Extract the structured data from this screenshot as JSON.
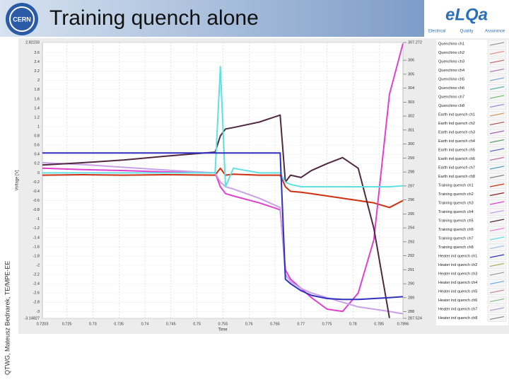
{
  "slide": {
    "author_note": "QTWG, Mateusz Bednarek, TE/MPE-EE",
    "cern_logo": "CERN",
    "elqa_logo": "eLQa",
    "elqa_words": [
      "Electrical",
      "Quality",
      "Assurance"
    ]
  },
  "chart_data": {
    "type": "line",
    "title": "Training quench alone",
    "xlabel": "Time",
    "ylabel": "Voltage [V]",
    "x": [
      0.7203,
      0.728,
      0.736,
      0.744,
      0.7535,
      0.7545,
      0.7555,
      0.757,
      0.762,
      0.766,
      0.767,
      0.768,
      0.77,
      0.772,
      0.775,
      0.778,
      0.781,
      0.784,
      0.787,
      0.7896
    ],
    "xlim": [
      0.7203,
      0.7896
    ],
    "xticks": [
      0.7203,
      0.725,
      0.73,
      0.735,
      0.74,
      0.745,
      0.75,
      0.755,
      0.76,
      0.765,
      0.77,
      0.775,
      0.78,
      0.785,
      0.7896
    ],
    "ylim": [
      -3.14827,
      2.82233
    ],
    "yticks": [
      2.82233,
      2.6,
      2.4,
      2.2,
      2,
      1.8,
      1.6,
      1.4,
      1.2,
      1,
      0.8,
      0.6,
      0.4,
      0.2,
      0,
      -0.2,
      -0.4,
      -0.6,
      -0.8,
      -1,
      -1.2,
      -1.4,
      -1.6,
      -1.8,
      -2,
      -2.2,
      -2.4,
      -2.6,
      -2.8,
      -3,
      -3.14827
    ],
    "y2lim": [
      287.524,
      307.272
    ],
    "y2ticks": [
      307.272,
      306,
      305,
      304,
      303,
      302,
      301,
      300,
      299,
      298,
      297,
      296,
      295,
      294,
      293,
      292,
      291,
      290,
      289,
      288,
      287.524
    ],
    "grid": true,
    "series": [
      {
        "name": "Quenchino ch1",
        "color": "#9a9a9a"
      },
      {
        "name": "Quenchino ch2",
        "color": "#e89090"
      },
      {
        "name": "Quenchino ch3",
        "color": "#c87070"
      },
      {
        "name": "Quenchino ch4",
        "color": "#b080b0"
      },
      {
        "name": "Quenchino ch5",
        "color": "#80a8d8"
      },
      {
        "name": "Quenchino ch6",
        "color": "#60b0b0"
      },
      {
        "name": "Quenchino ch7",
        "color": "#70c070"
      },
      {
        "name": "Quenchino ch8",
        "color": "#9090e0"
      },
      {
        "name": "Earth ind quench ch1",
        "color": "#d0a060"
      },
      {
        "name": "Earth ind quench ch2",
        "color": "#b06060"
      },
      {
        "name": "Earth ind quench ch3",
        "color": "#a060c0"
      },
      {
        "name": "Earth ind quench ch4",
        "color": "#60a060"
      },
      {
        "name": "Earth ind quench ch5",
        "color": "#6070c0"
      },
      {
        "name": "Earth ind quench ch6",
        "color": "#c070a0"
      },
      {
        "name": "Earth ind quench ch7",
        "color": "#50a0c0"
      },
      {
        "name": "Earth ind quench ch8",
        "color": "#808080"
      },
      {
        "name": "Training quench ch1",
        "color": "#d03010",
        "values": [
          -0.05,
          -0.04,
          -0.05,
          -0.04,
          -0.05,
          0.1,
          -0.05,
          -0.03,
          -0.05,
          -0.05,
          -0.3,
          -0.4,
          -0.42,
          -0.45,
          -0.5,
          -0.55,
          -0.6,
          -0.65,
          -0.75,
          -0.6
        ]
      },
      {
        "name": "Training quench ch2",
        "color": "#902020"
      },
      {
        "name": "Training quench ch3",
        "color": "#e040d0",
        "values": [
          0.1,
          0.07,
          0.05,
          0.02,
          0,
          -0.3,
          -0.45,
          -0.5,
          -0.65,
          -0.8,
          -2.1,
          -2.3,
          -2.5,
          -2.7,
          -2.95,
          -3.0,
          -2.6,
          -1.45,
          1.7,
          2.8
        ]
      },
      {
        "name": "Training quench ch4",
        "color": "#c8a0e8",
        "values": [
          0.22,
          0.18,
          0.12,
          0.06,
          0,
          -0.2,
          -0.3,
          -0.35,
          -0.55,
          -0.75,
          -2.2,
          -2.35,
          -2.5,
          -2.6,
          -2.7,
          -2.8,
          -2.9,
          -2.95,
          -3.0,
          -3.05
        ]
      },
      {
        "name": "Training quench ch5",
        "color": "#502840",
        "values": [
          0.17,
          0.22,
          0.28,
          0.36,
          0.45,
          0.8,
          0.95,
          0.98,
          1.1,
          1.25,
          -0.2,
          -0.05,
          -0.1,
          0.05,
          0.2,
          0.33,
          0.1,
          -1.2,
          -3.14,
          null
        ]
      },
      {
        "name": "Training quench ch6",
        "color": "#f080d0"
      },
      {
        "name": "Training quench ch7",
        "color": "#60e0e0",
        "values": [
          0,
          0,
          0,
          0,
          0,
          2.3,
          -0.3,
          0.1,
          0,
          0,
          -0.2,
          -0.25,
          -0.3,
          -0.3,
          -0.3,
          -0.3,
          -0.3,
          -0.3,
          -0.3,
          -0.28
        ]
      },
      {
        "name": "Training quench ch8",
        "color": "#a0c0f0"
      },
      {
        "name": "Heater ind quench ch1",
        "color": "#3030c0",
        "values": [
          0.43,
          0.43,
          0.43,
          0.43,
          0.43,
          0.43,
          0.43,
          0.43,
          0.43,
          0.43,
          -2.3,
          -2.4,
          -2.55,
          -2.65,
          -2.72,
          -2.74,
          -2.74,
          -2.72,
          -2.7,
          -2.68
        ]
      },
      {
        "name": "Heater ind quench ch2",
        "color": "#b0b060"
      },
      {
        "name": "Heater ind quench ch3",
        "color": "#a0a0a0"
      },
      {
        "name": "Heater ind quench ch4",
        "color": "#70b0e0"
      },
      {
        "name": "Heater ind quench ch5",
        "color": "#c09090"
      },
      {
        "name": "Heater ind quench ch6",
        "color": "#90c090"
      },
      {
        "name": "Heater ind quench ch7",
        "color": "#b0a0d0"
      },
      {
        "name": "Heater ind quench ch8",
        "color": "#909090"
      }
    ]
  }
}
